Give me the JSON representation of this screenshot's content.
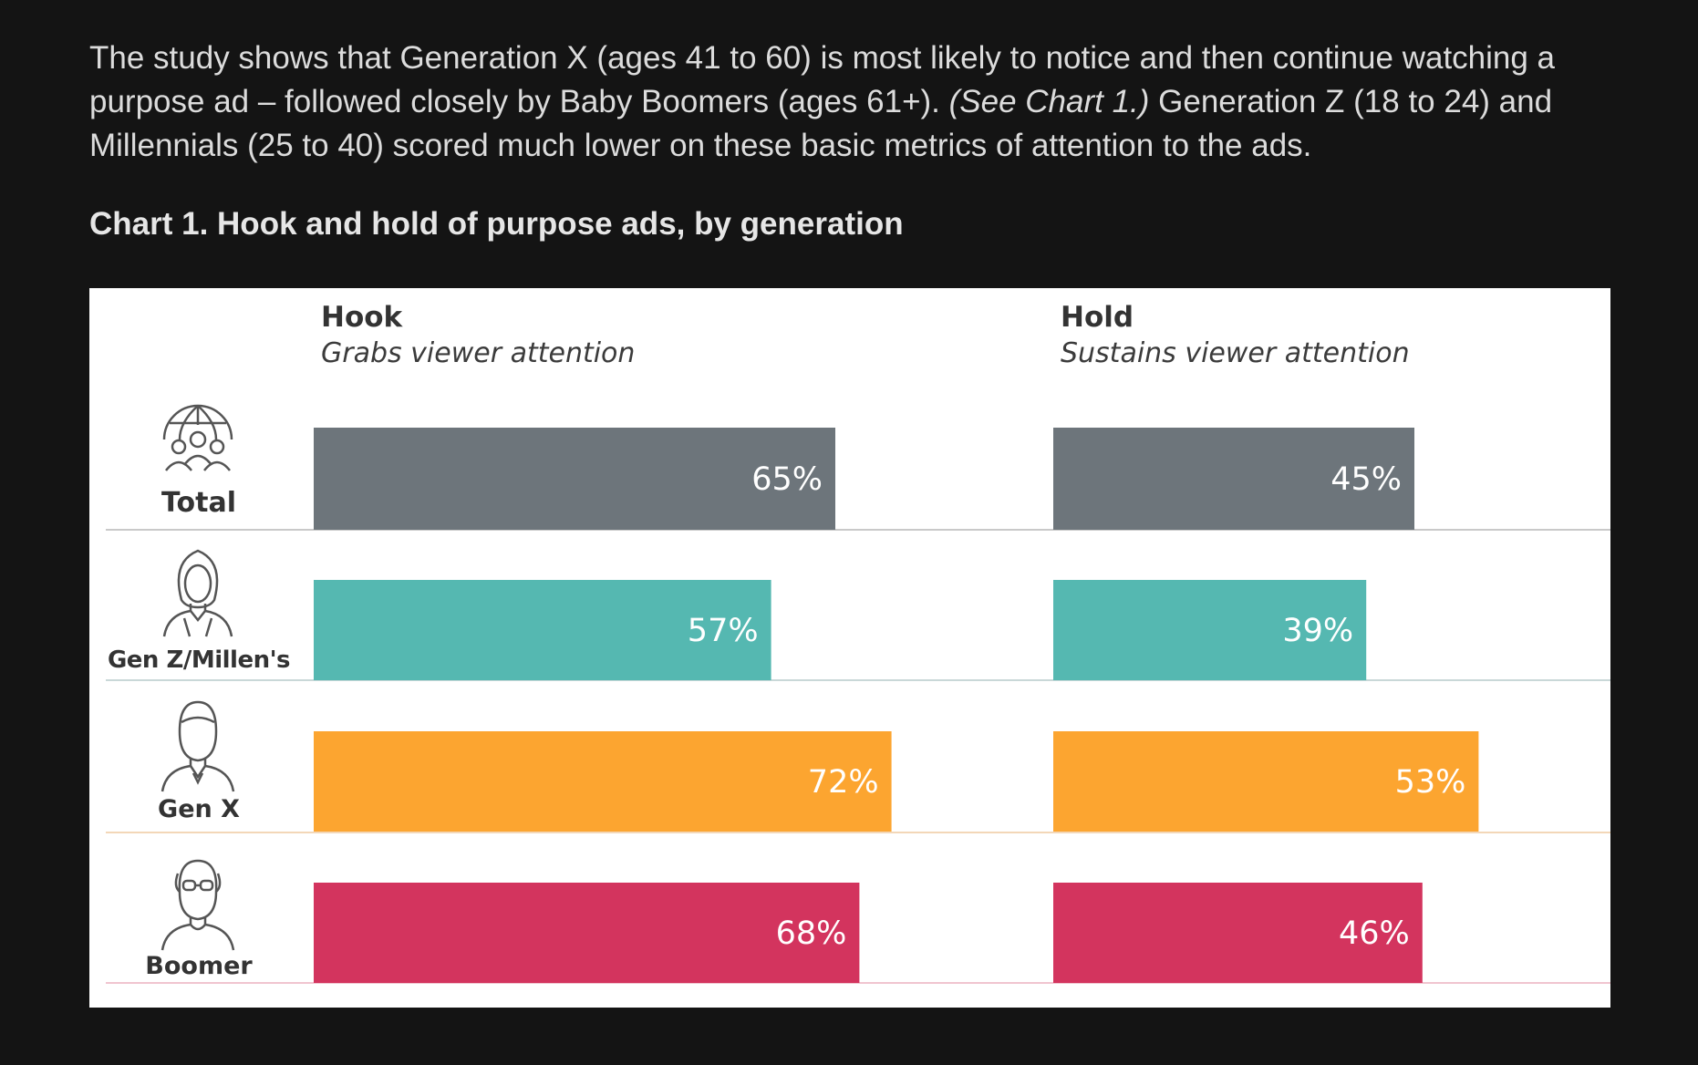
{
  "intro": {
    "part1": "The study shows that Generation X (ages 41 to 60) is most likely to notice and then continue watching a purpose ad – followed closely by Baby Boomers (ages 61+). ",
    "ref": "(See Chart 1.)",
    "part2": " Generation Z (18 to 24) and Millennials (25 to 40) scored much lower on these basic metrics of attention to the ads."
  },
  "chart_title": "Chart 1. Hook and hold of purpose ads, by generation",
  "chart_data": {
    "type": "bar",
    "orientation": "horizontal",
    "categories": [
      "Total",
      "Gen Z/Millen's",
      "Gen X",
      "Boomer"
    ],
    "category_icons": [
      "globe-group-icon",
      "woman-icon",
      "man-icon",
      "man-glasses-icon"
    ],
    "panels": [
      {
        "name": "Hook",
        "subtitle": "Grabs viewer attention",
        "values": [
          65,
          57,
          72,
          68
        ]
      },
      {
        "name": "Hold",
        "subtitle": "Sustains viewer attention",
        "values": [
          45,
          39,
          53,
          46
        ]
      }
    ],
    "value_labels": [
      [
        "65%",
        "57%",
        "72%",
        "68%"
      ],
      [
        "45%",
        "39%",
        "53%",
        "46%"
      ]
    ],
    "unit": "%",
    "xlim": [
      0,
      100
    ],
    "colors": [
      "#6d757b",
      "#55b8b1",
      "#fca530",
      "#d3345e"
    ]
  }
}
